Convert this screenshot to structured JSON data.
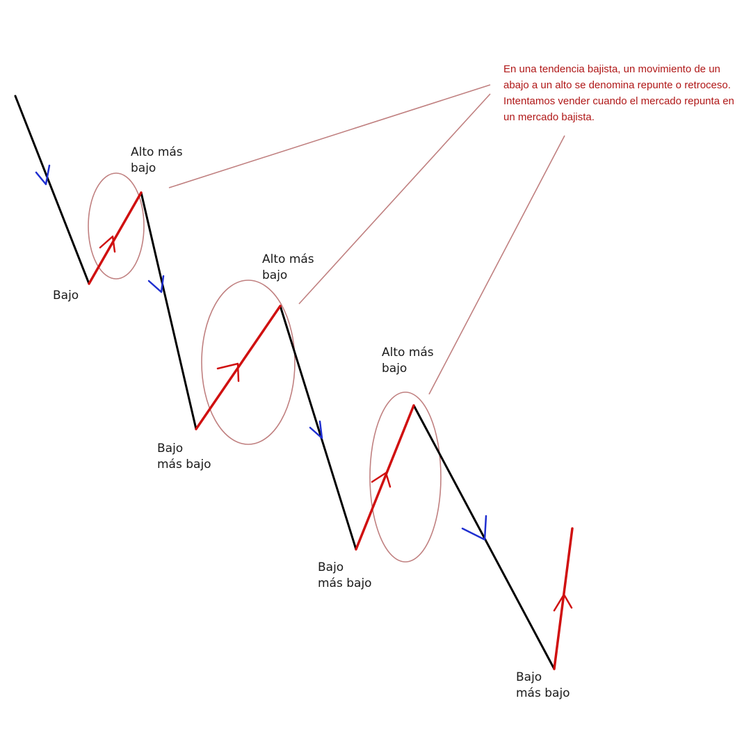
{
  "annotation": "En una tendencia bajista, un movimiento de un abajo a un alto se denomina repunte o retroceso. Intentamos vender cuando el mercado repunta en un mercado bajista.",
  "labels": {
    "low_1": [
      "Bajo"
    ],
    "high_1": [
      "Alto más",
      "bajo"
    ],
    "low_2": [
      "Bajo",
      "más bajo"
    ],
    "high_2": [
      "Alto más",
      "bajo"
    ],
    "low_3": [
      "Bajo",
      "más bajo"
    ],
    "high_3": [
      "Alto más",
      "bajo"
    ],
    "low_4": [
      "Bajo",
      "más bajo"
    ]
  },
  "colors": {
    "down_leg": "#000000",
    "up_leg": "#d01010",
    "down_arrow": "#1f2fd0",
    "circle_and_pointer": "#c08080",
    "annotation_text": "#b01818"
  }
}
